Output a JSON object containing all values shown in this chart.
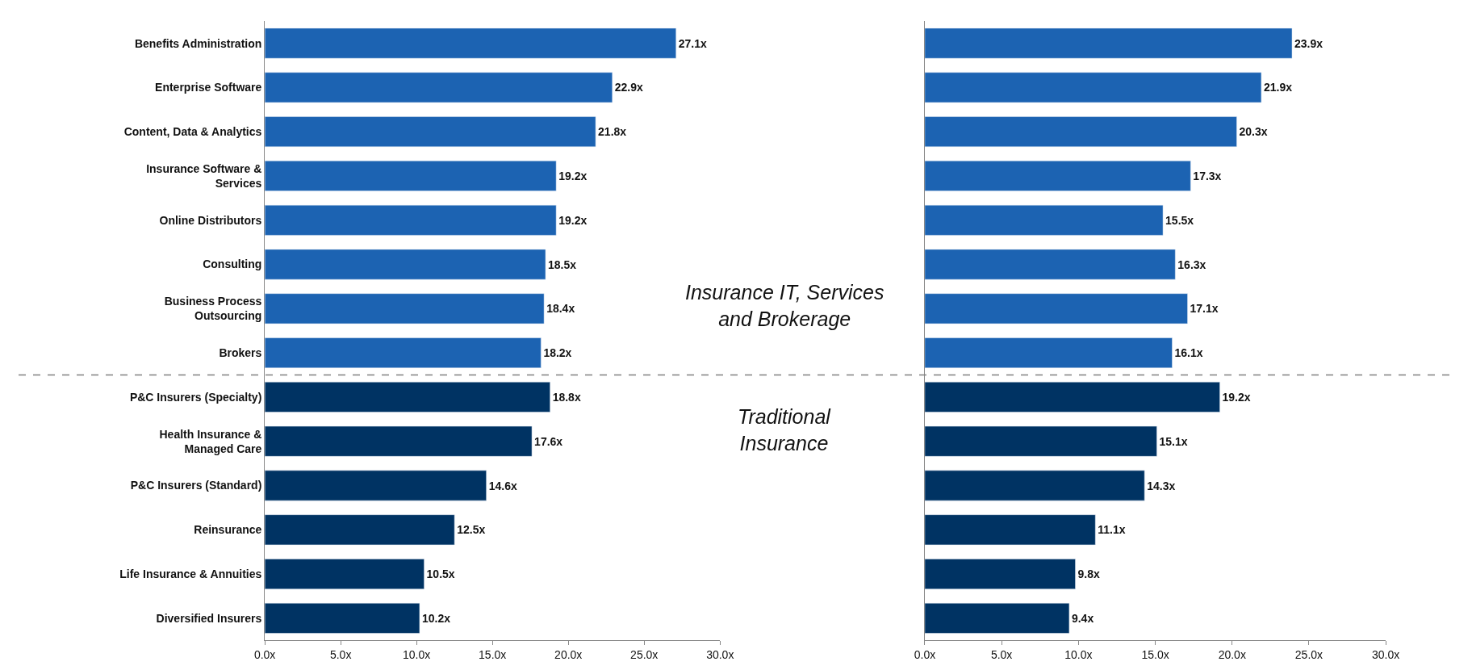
{
  "chart_data": [
    {
      "type": "bar",
      "orientation": "horizontal",
      "categories": [
        "Benefits Administration",
        "Enterprise Software",
        "Content, Data & Analytics",
        "Insurance Software &\nServices",
        "Online Distributors",
        "Consulting",
        "Business Process\nOutsourcing",
        "Brokers",
        "P&C Insurers (Specialty)",
        "Health Insurance &\nManaged Care",
        "P&C Insurers (Standard)",
        "Reinsurance",
        "Life Insurance & Annuities",
        "Diversified Insurers"
      ],
      "values": [
        27.1,
        22.9,
        21.8,
        19.2,
        19.2,
        18.5,
        18.4,
        18.2,
        18.8,
        17.6,
        14.6,
        12.5,
        10.5,
        10.2
      ],
      "value_labels": [
        "27.1x",
        "22.9x",
        "21.8x",
        "19.2x",
        "19.2x",
        "18.5x",
        "18.4x",
        "18.2x",
        "18.8x",
        "17.6x",
        "14.6x",
        "12.5x",
        "10.5x",
        "10.2x"
      ],
      "colors": [
        "#1c63b2",
        "#1c63b2",
        "#1c63b2",
        "#1c63b2",
        "#1c63b2",
        "#1c63b2",
        "#1c63b2",
        "#1c63b2",
        "#003363",
        "#003363",
        "#003363",
        "#003363",
        "#003363",
        "#003363"
      ],
      "xlim": [
        0,
        30
      ],
      "xticks": [
        {
          "value": 0,
          "label": "0.0x"
        },
        {
          "value": 5,
          "label": "5.0x"
        },
        {
          "value": 10,
          "label": "10.0x"
        },
        {
          "value": 15,
          "label": "15.0x"
        },
        {
          "value": 20,
          "label": "20.0x"
        },
        {
          "value": 25,
          "label": "25.0x"
        },
        {
          "value": 30,
          "label": "30.0x"
        }
      ],
      "legend": false
    },
    {
      "type": "bar",
      "orientation": "horizontal",
      "categories": [
        null,
        null,
        null,
        null,
        null,
        null,
        null,
        null,
        null,
        null,
        null,
        null,
        null,
        null
      ],
      "values": [
        23.9,
        21.9,
        20.3,
        17.3,
        15.5,
        16.3,
        17.1,
        16.1,
        19.2,
        15.1,
        14.3,
        11.1,
        9.8,
        9.4
      ],
      "value_labels": [
        "23.9x",
        "21.9x",
        "20.3x",
        "17.3x",
        "15.5x",
        "16.3x",
        "17.1x",
        "16.1x",
        "19.2x",
        "15.1x",
        "14.3x",
        "11.1x",
        "9.8x",
        "9.4x"
      ],
      "colors": [
        "#1c63b2",
        "#1c63b2",
        "#1c63b2",
        "#1c63b2",
        "#1c63b2",
        "#1c63b2",
        "#1c63b2",
        "#1c63b2",
        "#003363",
        "#003363",
        "#003363",
        "#003363",
        "#003363",
        "#003363"
      ],
      "xlim": [
        0,
        30
      ],
      "xticks": [
        {
          "value": 0,
          "label": "0.0x"
        },
        {
          "value": 5,
          "label": "5.0x"
        },
        {
          "value": 10,
          "label": "10.0x"
        },
        {
          "value": 15,
          "label": "15.0x"
        },
        {
          "value": 20,
          "label": "20.0x"
        },
        {
          "value": 25,
          "label": "25.0x"
        },
        {
          "value": 30,
          "label": "30.0x"
        }
      ],
      "tick_labels": "x",
      "annotations": [
        "Insurance IT, Services\nand Brokerage",
        "Traditional\nInsurance"
      ],
      "legend": false
    }
  ]
}
